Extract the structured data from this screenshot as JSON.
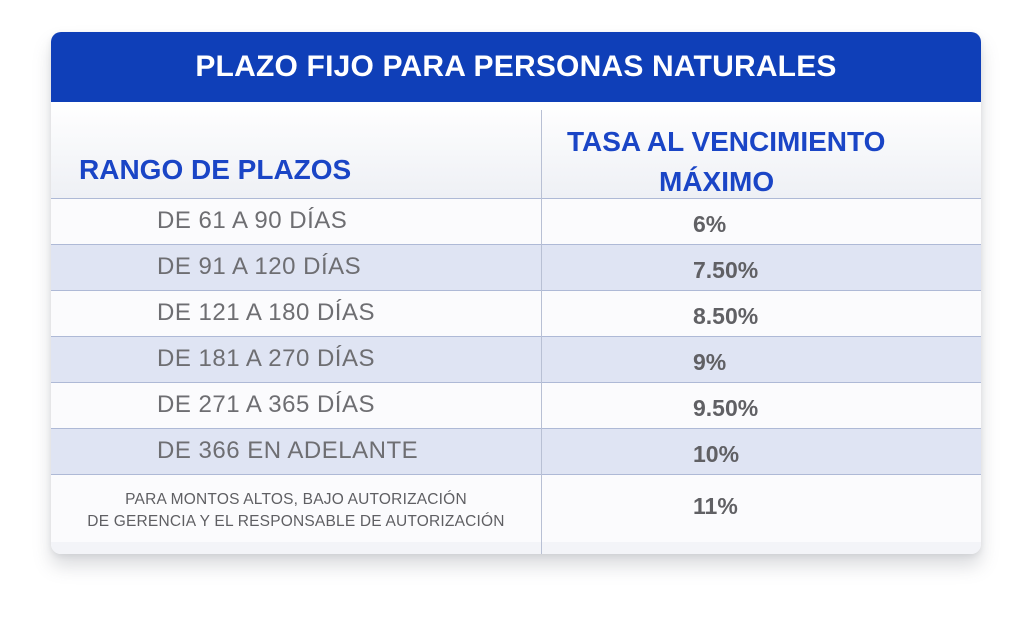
{
  "title": "PLAZO FIJO PARA PERSONAS NATURALES",
  "headers": {
    "range": "RANGO DE PLAZOS",
    "rate_line1": "TASA AL VENCIMIENTO",
    "rate_line2": "MÁXIMO"
  },
  "rows": [
    {
      "range": "DE 61 A 90 DÍAS",
      "rate": "6%"
    },
    {
      "range": "DE 91 A 120 DÍAS",
      "rate": "7.50%"
    },
    {
      "range": "DE 121 A 180 DÍAS",
      "rate": "8.50%"
    },
    {
      "range": "DE 181 A 270 DÍAS",
      "rate": "9%"
    },
    {
      "range": "DE 271 A 365 DÍAS",
      "rate": "9.50%"
    },
    {
      "range": "DE 366 EN ADELANTE",
      "rate": "10%"
    }
  ],
  "special": {
    "note_line1": "PARA MONTOS ALTOS, BAJO AUTORIZACIÓN",
    "note_line2": "DE GERENCIA Y EL RESPONSABLE DE AUTORIZACIÓN",
    "rate": "11%"
  }
}
